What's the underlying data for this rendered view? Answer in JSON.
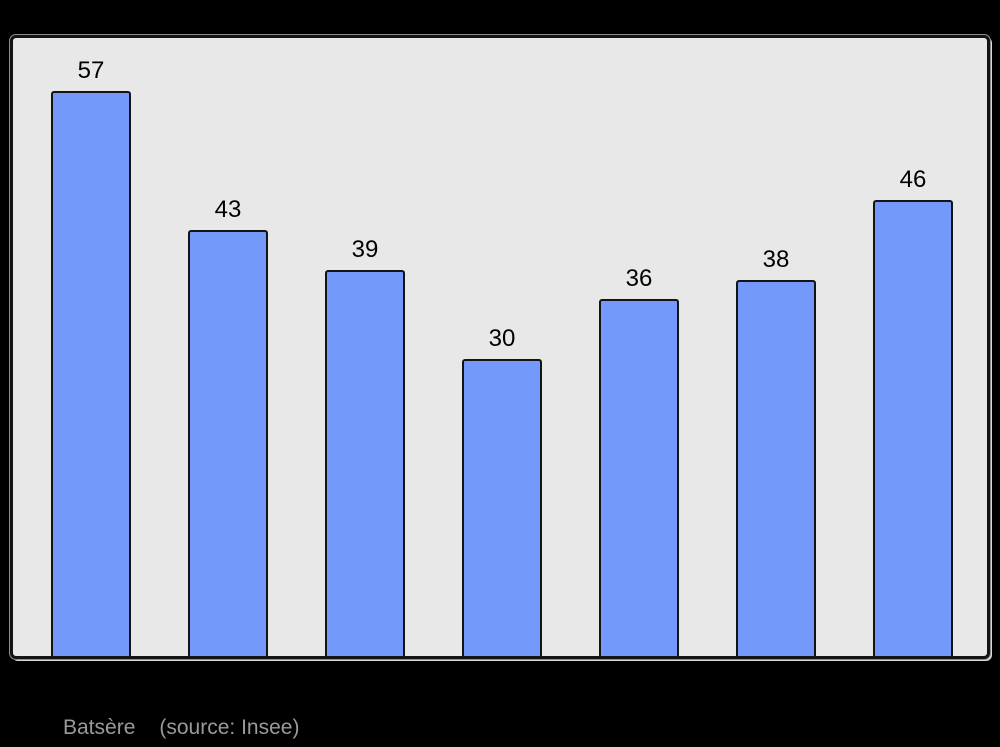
{
  "chart_data": {
    "type": "bar",
    "categories": [],
    "values": [
      57,
      43,
      39,
      30,
      36,
      38,
      46
    ],
    "title": "",
    "xlabel": "",
    "ylabel": "",
    "ylim": [
      0,
      62.4
    ],
    "grid": false,
    "legend_position": "none",
    "annotations": "value shown above each bar"
  },
  "footer": {
    "place_label": "Batsère",
    "source_label": "(source: Insee)"
  },
  "colors": {
    "page_bg": "#000000",
    "plot_bg": "#e8e8e8",
    "bar_fill": "#7399fa",
    "bar_border": "#141414",
    "frame_border": "#141414",
    "label_color": "#000000",
    "footer_color": "#9a9a9a"
  }
}
